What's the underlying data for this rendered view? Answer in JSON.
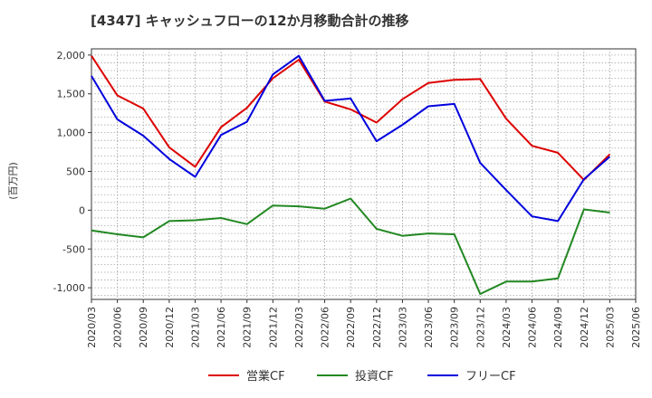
{
  "chart_data": {
    "type": "line",
    "title": "[4347]  キャッシュフローの12か月移動合計の推移",
    "xlabel": "",
    "ylabel": "(百万円)",
    "ylim": [
      -1150,
      2080
    ],
    "yticks": [
      2000,
      1500,
      1000,
      500,
      0,
      -500,
      -1000
    ],
    "ytick_labels": [
      "2,000",
      "1,500",
      "1,000",
      "500",
      "0",
      "-500",
      "-1,000"
    ],
    "xtick_labels": [
      "2020/03",
      "2020/06",
      "2020/09",
      "2020/12",
      "2021/03",
      "2021/06",
      "2021/09",
      "2021/12",
      "2022/03",
      "2022/06",
      "2022/09",
      "2022/12",
      "2023/03",
      "2023/06",
      "2023/09",
      "2023/12",
      "2024/03",
      "2024/06",
      "2024/09",
      "2024/12",
      "2025/03",
      "2025/06"
    ],
    "categories": [
      "2020/03",
      "2020/06",
      "2020/09",
      "2020/12",
      "2021/03",
      "2021/06",
      "2021/09",
      "2021/12",
      "2022/03",
      "2022/06",
      "2022/09",
      "2022/12",
      "2023/03",
      "2023/06",
      "2023/09",
      "2023/12",
      "2024/03",
      "2024/06",
      "2024/09",
      "2024/12",
      "2025/03"
    ],
    "grid": true,
    "legend_position": "bottom",
    "series": [
      {
        "name": "営業CF",
        "color": "#dd0000",
        "values": [
          1990,
          1480,
          1310,
          810,
          560,
          1070,
          1320,
          1700,
          1940,
          1400,
          1300,
          1130,
          1430,
          1640,
          1680,
          1690,
          1180,
          830,
          740,
          390,
          720
        ]
      },
      {
        "name": "投資CF",
        "color": "#228822",
        "values": [
          -260,
          -310,
          -350,
          -140,
          -130,
          -100,
          -180,
          60,
          50,
          20,
          150,
          -240,
          -330,
          -300,
          -310,
          -1080,
          -920,
          -920,
          -880,
          10,
          -30
        ]
      },
      {
        "name": "フリーCF",
        "color": "#0000dd",
        "values": [
          1730,
          1170,
          960,
          660,
          430,
          970,
          1140,
          1750,
          1990,
          1410,
          1440,
          890,
          1100,
          1340,
          1370,
          610,
          260,
          -80,
          -140,
          400,
          690
        ]
      }
    ]
  }
}
